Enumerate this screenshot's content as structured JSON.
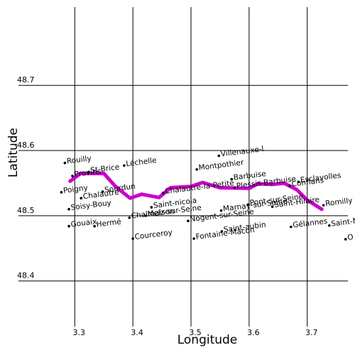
{
  "chart_data": {
    "type": "scatter",
    "xlabel": "Longitude",
    "ylabel": "Latitude",
    "xlim": [
      3.23,
      3.77
    ],
    "ylim": [
      48.33,
      48.82
    ],
    "x_ticks": [
      "3.3",
      "3.4",
      "3.5",
      "3.6",
      "3.7"
    ],
    "x_tick_values": [
      3.3,
      3.4,
      3.5,
      3.6,
      3.7
    ],
    "y_ticks": [
      "48.4",
      "48.5",
      "48.6",
      "48.7"
    ],
    "y_tick_values": [
      48.4,
      48.5,
      48.6,
      48.7
    ],
    "grid": true,
    "route": {
      "color": "#cc00cc",
      "points": [
        [
          3.292,
          48.553
        ],
        [
          3.31,
          48.565
        ],
        [
          3.35,
          48.565
        ],
        [
          3.37,
          48.545
        ],
        [
          3.395,
          48.527
        ],
        [
          3.415,
          48.533
        ],
        [
          3.445,
          48.528
        ],
        [
          3.465,
          48.543
        ],
        [
          3.5,
          48.545
        ],
        [
          3.52,
          48.551
        ],
        [
          3.55,
          48.543
        ],
        [
          3.6,
          48.542
        ],
        [
          3.615,
          48.549
        ],
        [
          3.64,
          48.548
        ],
        [
          3.66,
          48.55
        ],
        [
          3.682,
          48.54
        ],
        [
          3.7,
          48.524
        ],
        [
          3.725,
          48.51
        ]
      ]
    },
    "places": [
      {
        "name": "Rouilly",
        "lon": 3.283,
        "lat": 48.581
      },
      {
        "name": "Provins",
        "lon": 3.296,
        "lat": 48.561
      },
      {
        "name": "St-Brice",
        "lon": 3.324,
        "lat": 48.567
      },
      {
        "name": "Léchelle",
        "lon": 3.385,
        "lat": 48.577
      },
      {
        "name": "Poigny",
        "lon": 3.277,
        "lat": 48.536
      },
      {
        "name": "Chalautre",
        "lon": 3.311,
        "lat": 48.527
      },
      {
        "name": "Sourdun",
        "lon": 3.348,
        "lat": 48.537
      },
      {
        "name": "Soisy-Bouy",
        "lon": 3.29,
        "lat": 48.51
      },
      {
        "name": "Gouaix",
        "lon": 3.29,
        "lat": 48.484
      },
      {
        "name": "Hermé",
        "lon": 3.334,
        "lat": 48.484
      },
      {
        "name": "Chalmaison",
        "lon": 3.394,
        "lat": 48.497
      },
      {
        "name": "Melz-sur-Seine",
        "lon": 3.422,
        "lat": 48.5
      },
      {
        "name": "Saint-nicola",
        "lon": 3.432,
        "lat": 48.513
      },
      {
        "name": "Courceroy",
        "lon": 3.4,
        "lat": 48.465
      },
      {
        "name": "Chalautre-la-Petite",
        "lon": 3.452,
        "lat": 48.535
      },
      {
        "name": "Villenauxe-l",
        "lon": 3.548,
        "lat": 48.592
      },
      {
        "name": "Montpothier",
        "lon": 3.51,
        "lat": 48.571
      },
      {
        "name": "Barbuise",
        "lon": 3.57,
        "lat": 48.556
      },
      {
        "name": "Plessis-Barbuise",
        "lon": 3.575,
        "lat": 48.543
      },
      {
        "name": "Marnay-sur-Seine",
        "lon": 3.552,
        "lat": 48.508
      },
      {
        "name": "Nogent-sur-Seine",
        "lon": 3.495,
        "lat": 48.492
      },
      {
        "name": "Fontaine-Mâcon",
        "lon": 3.505,
        "lat": 48.465
      },
      {
        "name": "Saint-aubin",
        "lon": 3.553,
        "lat": 48.476
      },
      {
        "name": "Pont-sur-Seine",
        "lon": 3.598,
        "lat": 48.517
      },
      {
        "name": "Saint-Hilaire",
        "lon": 3.64,
        "lat": 48.514
      },
      {
        "name": "Esclavolles",
        "lon": 3.685,
        "lat": 48.552
      },
      {
        "name": "Conflans",
        "lon": 3.67,
        "lat": 48.546
      },
      {
        "name": "Romilly",
        "lon": 3.728,
        "lat": 48.516
      },
      {
        "name": "Gélannes",
        "lon": 3.672,
        "lat": 48.483
      },
      {
        "name": "Saint-Martin",
        "lon": 3.738,
        "lat": 48.485
      },
      {
        "name": "O",
        "lon": 3.766,
        "lat": 48.464
      }
    ]
  }
}
